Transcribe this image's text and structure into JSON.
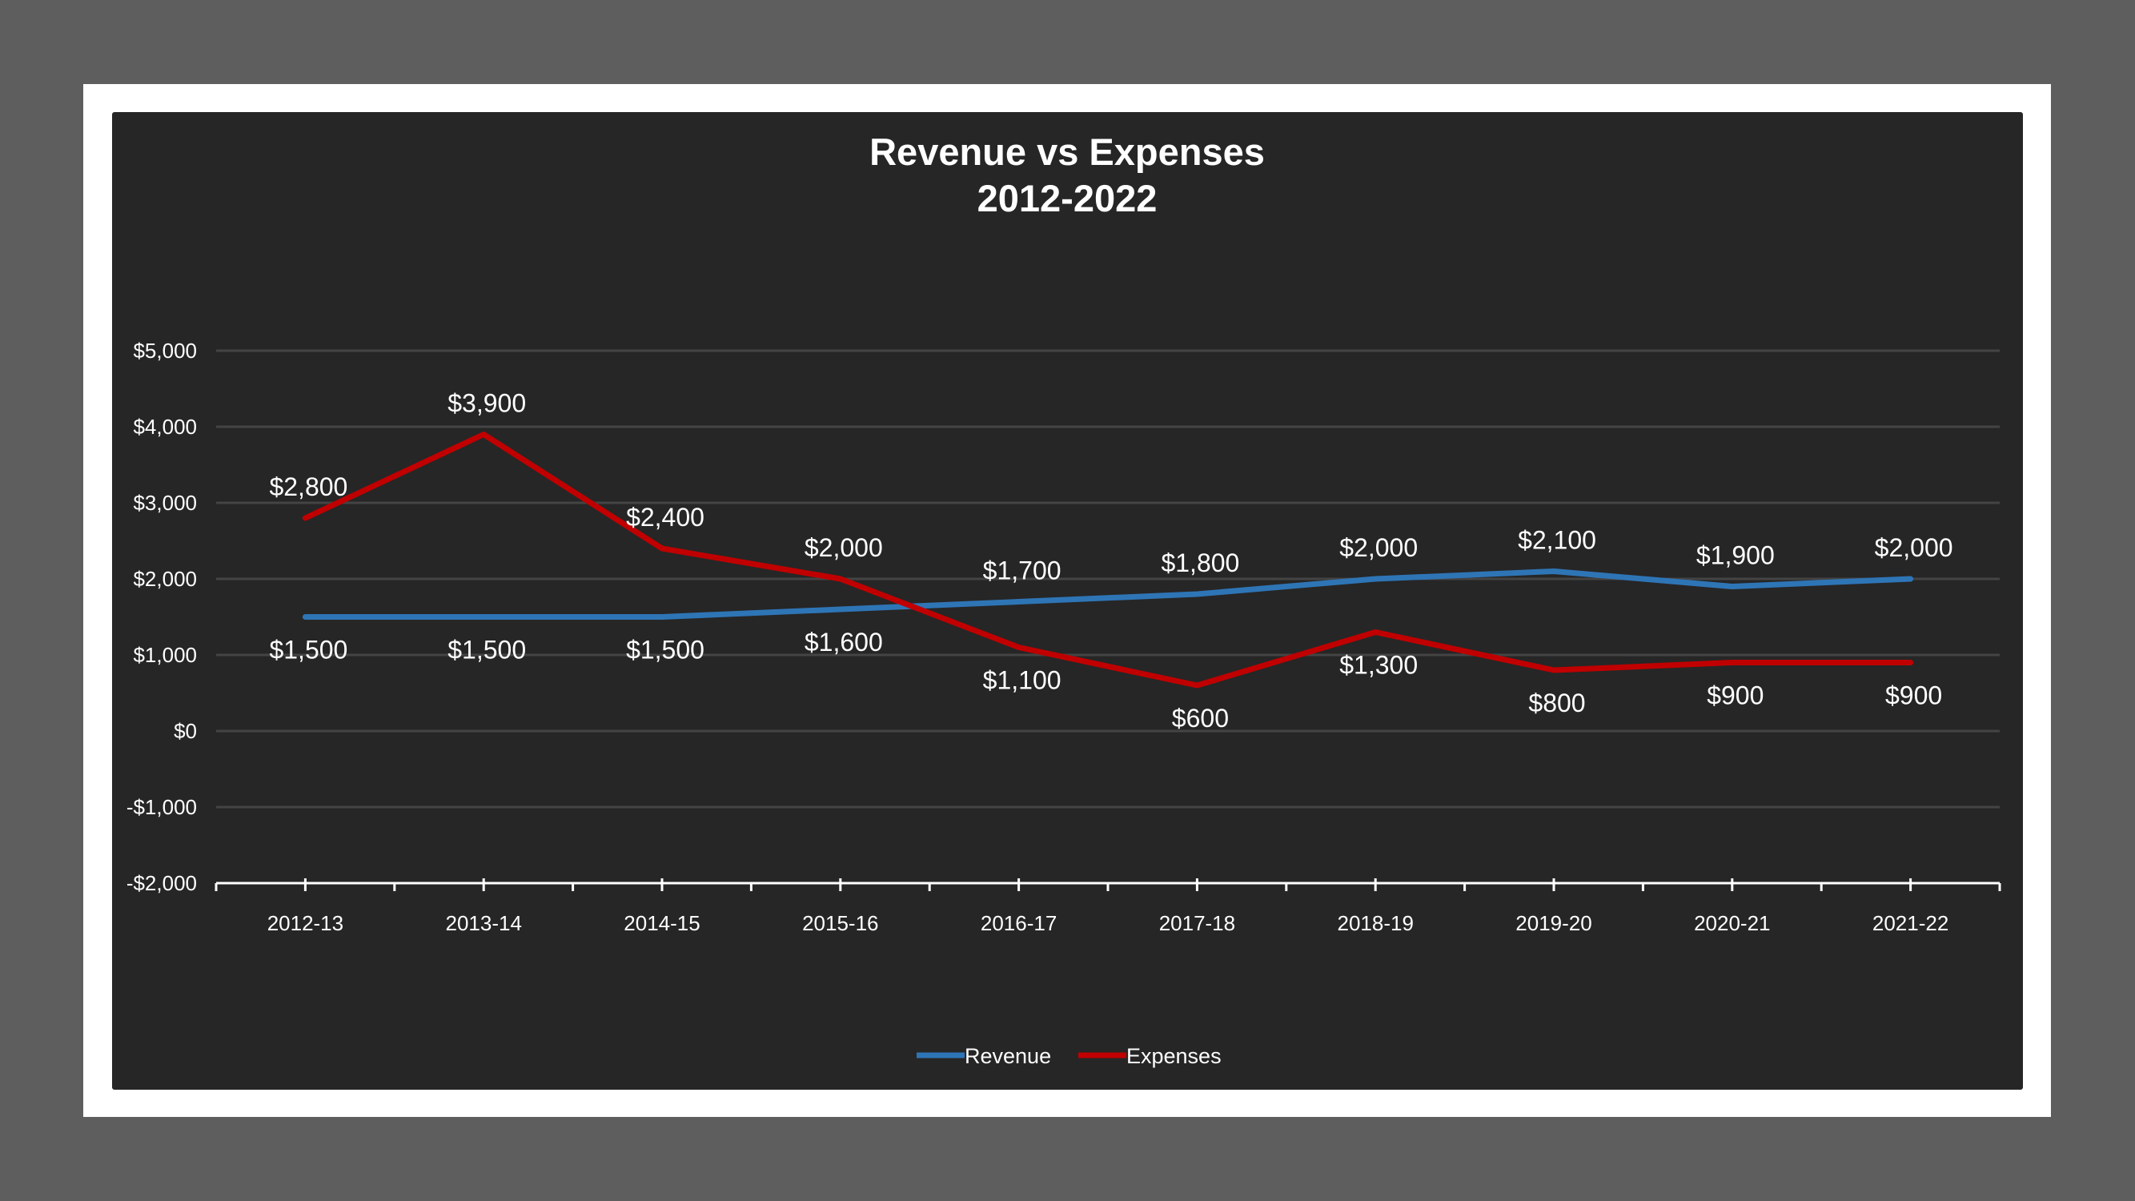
{
  "colors": {
    "background": "#5e5e5e",
    "frame": "#ffffff",
    "plot_background": "#262626",
    "gridline": "#444444",
    "axis": "#ffffff",
    "revenue": "#2e75b6",
    "expenses": "#c00000"
  },
  "chart_data": {
    "type": "line",
    "title": [
      "Revenue vs Expenses",
      "2012-2022"
    ],
    "xlabel": "",
    "ylabel": "",
    "categories": [
      "2012-13",
      "2013-14",
      "2014-15",
      "2015-16",
      "2016-17",
      "2017-18",
      "2018-19",
      "2019-20",
      "2020-21",
      "2021-22"
    ],
    "ylim": [
      -2000,
      5000
    ],
    "yticks": [
      5000,
      4000,
      3000,
      2000,
      1000,
      0,
      -1000,
      -2000
    ],
    "ytick_labels": [
      "$5,000",
      "$4,000",
      "$3,000",
      "$2,000",
      "$1,000",
      "$0",
      "-$1,000",
      "-$2,000"
    ],
    "grid": true,
    "legend_position": "bottom",
    "series": [
      {
        "name": "Revenue",
        "color": "#2e75b6",
        "values": [
          1500,
          1500,
          1500,
          1600,
          1700,
          1800,
          2000,
          2100,
          1900,
          2000
        ],
        "labels": [
          "$1,500",
          "$1,500",
          "$1,500",
          "$1,600",
          "$1,700",
          "$1,800",
          "$2,000",
          "$2,100",
          "$1,900",
          "$2,000"
        ],
        "label_side": [
          "below",
          "below",
          "below",
          "below",
          "above",
          "above",
          "above",
          "above",
          "above",
          "above"
        ]
      },
      {
        "name": "Expenses",
        "color": "#c00000",
        "values": [
          2800,
          3900,
          2400,
          2000,
          1100,
          600,
          1300,
          800,
          900,
          900
        ],
        "labels": [
          "$2,800",
          "$3,900",
          "$2,400",
          "$2,000",
          "$1,100",
          "$600",
          "$1,300",
          "$800",
          "$900",
          "$900"
        ],
        "label_side": [
          "above",
          "above",
          "above",
          "above",
          "below",
          "below",
          "below",
          "below",
          "below",
          "below"
        ]
      }
    ]
  }
}
